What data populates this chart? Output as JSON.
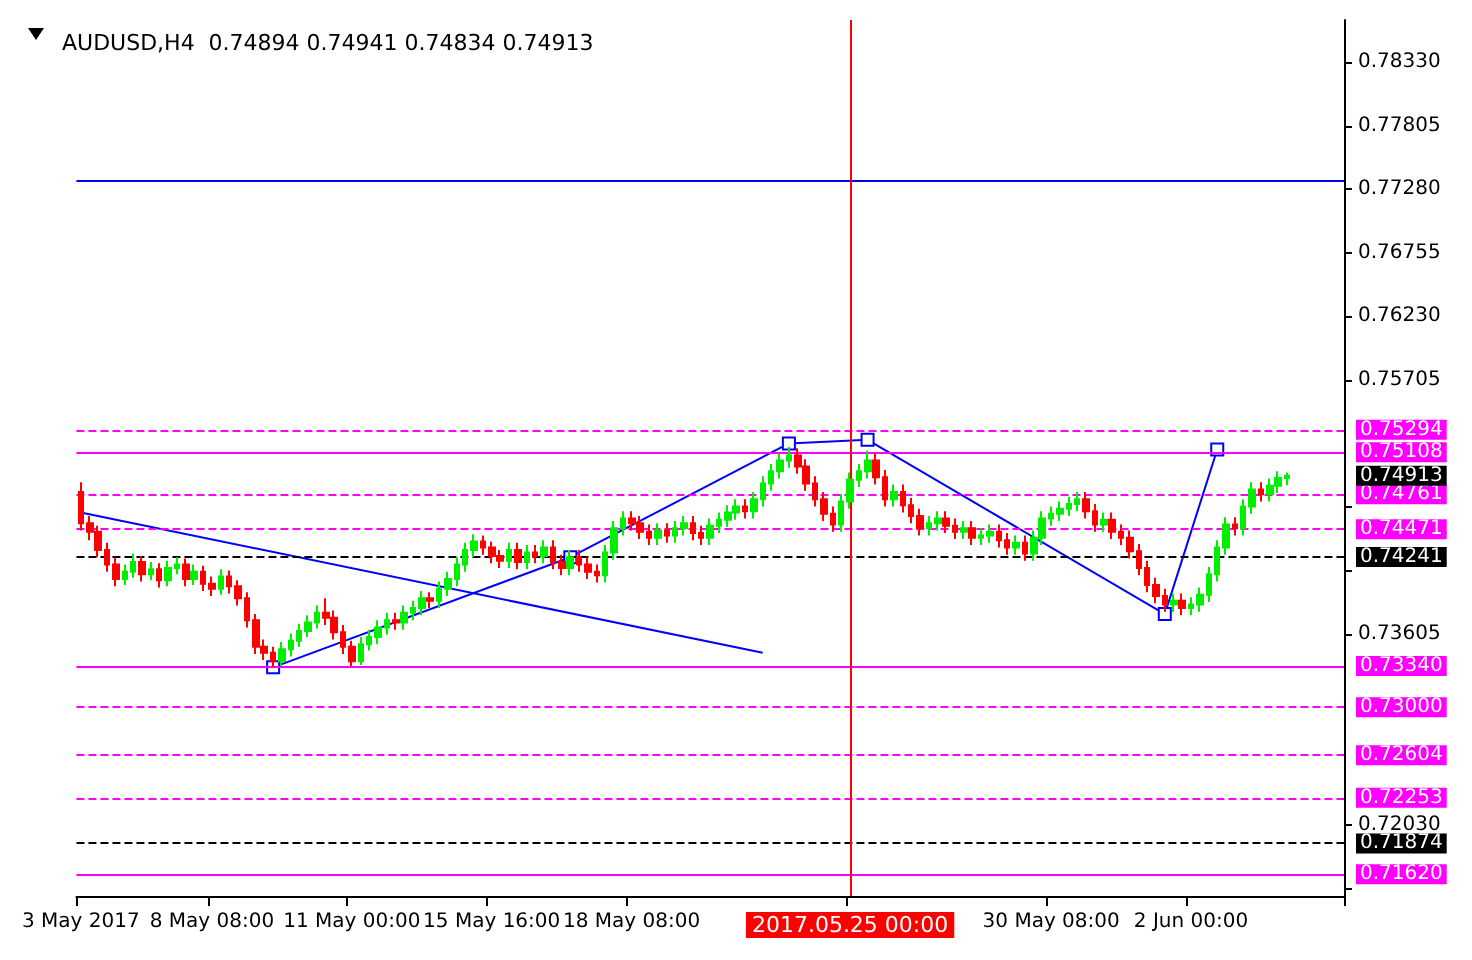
{
  "chart_data": {
    "type": "candlestick",
    "title": "AUDUSD,H4  0.74894 0.74941 0.74834 0.74913",
    "categories": [
      "3 May 2017",
      null,
      null,
      null,
      null,
      null,
      null,
      null,
      null,
      null,
      null,
      null,
      null,
      null,
      null,
      "8 May 08:00",
      null,
      null,
      null,
      null,
      null,
      null,
      null,
      null,
      null,
      null,
      null,
      null,
      null,
      null,
      null,
      "11 May 00:00",
      null,
      null,
      null,
      null,
      null,
      null,
      null,
      null,
      null,
      null,
      null,
      null,
      null,
      null,
      null,
      "15 May 16:00",
      null,
      null,
      null,
      null,
      null,
      null,
      null,
      null,
      null,
      null,
      null,
      null,
      null,
      null,
      null,
      "18 May 08:00",
      null,
      null,
      null,
      null,
      null,
      null,
      null,
      null,
      null,
      null,
      null,
      null,
      null,
      null,
      null,
      null,
      null,
      null,
      null,
      null,
      null,
      null,
      null,
      null,
      "2017.05.25 00:00",
      null,
      null,
      null,
      null,
      null,
      null,
      null,
      null,
      null,
      null,
      null,
      null,
      null,
      null,
      null,
      null,
      null,
      null,
      null,
      null,
      null,
      null,
      "30 May 08:00",
      null,
      null,
      null,
      null,
      null,
      null,
      null,
      null,
      null,
      null,
      null,
      null,
      null,
      null,
      null,
      "2 Jun 00:00",
      null,
      null,
      null,
      null,
      null,
      null,
      null,
      null,
      null,
      null,
      null,
      null,
      null,
      null,
      null,
      null,
      null
    ],
    "ohlc": [
      [
        0.7478,
        0.7486,
        0.7446,
        0.7452
      ],
      [
        0.7452,
        0.7458,
        0.7438,
        0.7445
      ],
      [
        0.7445,
        0.745,
        0.7424,
        0.743
      ],
      [
        0.743,
        0.7436,
        0.7412,
        0.7418
      ],
      [
        0.7418,
        0.7424,
        0.74,
        0.7406
      ],
      [
        0.7406,
        0.7418,
        0.7401,
        0.7412
      ],
      [
        0.7412,
        0.7427,
        0.7407,
        0.742
      ],
      [
        0.742,
        0.7425,
        0.7404,
        0.741
      ],
      [
        0.741,
        0.742,
        0.7405,
        0.7414
      ],
      [
        0.7414,
        0.7419,
        0.7399,
        0.7405
      ],
      [
        0.7405,
        0.7421,
        0.74,
        0.7415
      ],
      [
        0.7415,
        0.7424,
        0.741,
        0.7418
      ],
      [
        0.7418,
        0.7423,
        0.74,
        0.7406
      ],
      [
        0.7406,
        0.7418,
        0.7401,
        0.7412
      ],
      [
        0.7412,
        0.7417,
        0.7396,
        0.7402
      ],
      [
        0.7402,
        0.7408,
        0.7392,
        0.7398
      ],
      [
        0.7398,
        0.7414,
        0.7393,
        0.7408
      ],
      [
        0.7408,
        0.7413,
        0.7394,
        0.74
      ],
      [
        0.74,
        0.7405,
        0.7384,
        0.739
      ],
      [
        0.739,
        0.7395,
        0.7366,
        0.7372
      ],
      [
        0.7372,
        0.7377,
        0.7344,
        0.735
      ],
      [
        0.735,
        0.7356,
        0.7339,
        0.7345
      ],
      [
        0.7345,
        0.735,
        0.7333,
        0.7338
      ],
      [
        0.7338,
        0.7354,
        0.7334,
        0.7348
      ],
      [
        0.7348,
        0.7361,
        0.7342,
        0.7355
      ],
      [
        0.7355,
        0.7369,
        0.735,
        0.7363
      ],
      [
        0.7363,
        0.7376,
        0.7358,
        0.737
      ],
      [
        0.737,
        0.7384,
        0.7365,
        0.7378
      ],
      [
        0.7378,
        0.739,
        0.7368,
        0.7374
      ],
      [
        0.7374,
        0.738,
        0.7356,
        0.7362
      ],
      [
        0.7362,
        0.7368,
        0.7344,
        0.735
      ],
      [
        0.735,
        0.7355,
        0.7334,
        0.7338
      ],
      [
        0.7338,
        0.7358,
        0.7335,
        0.7352
      ],
      [
        0.7352,
        0.7364,
        0.7347,
        0.7358
      ],
      [
        0.7358,
        0.7372,
        0.7352,
        0.7366
      ],
      [
        0.7366,
        0.7378,
        0.736,
        0.7372
      ],
      [
        0.7372,
        0.7378,
        0.7364,
        0.737
      ],
      [
        0.737,
        0.7384,
        0.7364,
        0.7378
      ],
      [
        0.7378,
        0.7388,
        0.7372,
        0.7382
      ],
      [
        0.7382,
        0.7396,
        0.7376,
        0.739
      ],
      [
        0.739,
        0.7395,
        0.7382,
        0.7388
      ],
      [
        0.7388,
        0.7404,
        0.7382,
        0.7398
      ],
      [
        0.7398,
        0.7412,
        0.7392,
        0.7406
      ],
      [
        0.7406,
        0.7424,
        0.74,
        0.7418
      ],
      [
        0.7418,
        0.7436,
        0.7412,
        0.743
      ],
      [
        0.743,
        0.7443,
        0.7424,
        0.7437
      ],
      [
        0.7437,
        0.7442,
        0.7426,
        0.7432
      ],
      [
        0.7432,
        0.7437,
        0.7419,
        0.7425
      ],
      [
        0.7425,
        0.743,
        0.7415,
        0.7421
      ],
      [
        0.7421,
        0.7436,
        0.7415,
        0.743
      ],
      [
        0.743,
        0.7436,
        0.7414,
        0.742
      ],
      [
        0.742,
        0.7434,
        0.7414,
        0.7428
      ],
      [
        0.7428,
        0.7434,
        0.7419,
        0.7425
      ],
      [
        0.7425,
        0.7438,
        0.7419,
        0.7432
      ],
      [
        0.7432,
        0.7438,
        0.7414,
        0.742
      ],
      [
        0.742,
        0.7426,
        0.7409,
        0.7415
      ],
      [
        0.7415,
        0.743,
        0.7409,
        0.7424
      ],
      [
        0.7424,
        0.743,
        0.7412,
        0.7418
      ],
      [
        0.7418,
        0.7424,
        0.7406,
        0.7412
      ],
      [
        0.7412,
        0.7418,
        0.7403,
        0.7409
      ],
      [
        0.7409,
        0.7434,
        0.7403,
        0.7428
      ],
      [
        0.7428,
        0.7454,
        0.7422,
        0.7448
      ],
      [
        0.7448,
        0.7462,
        0.7442,
        0.7456
      ],
      [
        0.7456,
        0.7462,
        0.7446,
        0.7452
      ],
      [
        0.7452,
        0.7458,
        0.7439,
        0.7445
      ],
      [
        0.7445,
        0.7451,
        0.7434,
        0.744
      ],
      [
        0.744,
        0.7452,
        0.7434,
        0.7446
      ],
      [
        0.7446,
        0.7452,
        0.7436,
        0.7442
      ],
      [
        0.7442,
        0.7454,
        0.7436,
        0.7448
      ],
      [
        0.7448,
        0.7458,
        0.7442,
        0.7452
      ],
      [
        0.7452,
        0.7458,
        0.7438,
        0.7444
      ],
      [
        0.7444,
        0.745,
        0.7434,
        0.744
      ],
      [
        0.744,
        0.7456,
        0.7434,
        0.745
      ],
      [
        0.745,
        0.7461,
        0.7444,
        0.7455
      ],
      [
        0.7455,
        0.7467,
        0.7449,
        0.7461
      ],
      [
        0.7461,
        0.7472,
        0.7455,
        0.7466
      ],
      [
        0.7466,
        0.7472,
        0.7456,
        0.7462
      ],
      [
        0.7462,
        0.7478,
        0.7456,
        0.7472
      ],
      [
        0.7472,
        0.7491,
        0.7466,
        0.7485
      ],
      [
        0.7485,
        0.7501,
        0.7479,
        0.7495
      ],
      [
        0.7495,
        0.751,
        0.7489,
        0.7504
      ],
      [
        0.7504,
        0.7515,
        0.7498,
        0.7508
      ],
      [
        0.7508,
        0.7514,
        0.7493,
        0.7499
      ],
      [
        0.7499,
        0.7505,
        0.7479,
        0.7485
      ],
      [
        0.7485,
        0.7491,
        0.7466,
        0.7472
      ],
      [
        0.7472,
        0.7478,
        0.7454,
        0.746
      ],
      [
        0.746,
        0.7466,
        0.7445,
        0.7451
      ],
      [
        0.7451,
        0.7476,
        0.7445,
        0.747
      ],
      [
        0.747,
        0.7494,
        0.7464,
        0.7488
      ],
      [
        0.7488,
        0.7501,
        0.7482,
        0.7495
      ],
      [
        0.7495,
        0.7512,
        0.7489,
        0.7504
      ],
      [
        0.7504,
        0.751,
        0.7484,
        0.749
      ],
      [
        0.749,
        0.7496,
        0.7466,
        0.7472
      ],
      [
        0.7472,
        0.7484,
        0.7466,
        0.7478
      ],
      [
        0.7478,
        0.7484,
        0.7461,
        0.7467
      ],
      [
        0.7467,
        0.7473,
        0.7452,
        0.7458
      ],
      [
        0.7458,
        0.7464,
        0.7442,
        0.7448
      ],
      [
        0.7448,
        0.7458,
        0.7442,
        0.7452
      ],
      [
        0.7452,
        0.7462,
        0.7446,
        0.7456
      ],
      [
        0.7456,
        0.7462,
        0.7444,
        0.745
      ],
      [
        0.745,
        0.7456,
        0.7439,
        0.7445
      ],
      [
        0.7445,
        0.7454,
        0.7439,
        0.7448
      ],
      [
        0.7448,
        0.7454,
        0.7434,
        0.744
      ],
      [
        0.744,
        0.7448,
        0.7434,
        0.7442
      ],
      [
        0.7442,
        0.7451,
        0.7436,
        0.7445
      ],
      [
        0.7445,
        0.7451,
        0.7432,
        0.7438
      ],
      [
        0.7438,
        0.7444,
        0.7426,
        0.7432
      ],
      [
        0.7432,
        0.7442,
        0.7426,
        0.7436
      ],
      [
        0.7436,
        0.7442,
        0.7421,
        0.7427
      ],
      [
        0.7427,
        0.7446,
        0.7421,
        0.744
      ],
      [
        0.744,
        0.7462,
        0.7434,
        0.7456
      ],
      [
        0.7456,
        0.7466,
        0.745,
        0.746
      ],
      [
        0.746,
        0.747,
        0.7454,
        0.7464
      ],
      [
        0.7464,
        0.7474,
        0.7458,
        0.7468
      ],
      [
        0.7468,
        0.7478,
        0.7462,
        0.7472
      ],
      [
        0.7472,
        0.7478,
        0.7456,
        0.7462
      ],
      [
        0.7462,
        0.7468,
        0.7445,
        0.7451
      ],
      [
        0.7451,
        0.7461,
        0.7445,
        0.7455
      ],
      [
        0.7455,
        0.7461,
        0.7439,
        0.7445
      ],
      [
        0.7445,
        0.7451,
        0.7434,
        0.744
      ],
      [
        0.744,
        0.7446,
        0.7423,
        0.7429
      ],
      [
        0.7429,
        0.7435,
        0.7409,
        0.7415
      ],
      [
        0.7415,
        0.7421,
        0.7395,
        0.7401
      ],
      [
        0.7401,
        0.7407,
        0.7386,
        0.7392
      ],
      [
        0.7392,
        0.7398,
        0.7379,
        0.7385
      ],
      [
        0.7385,
        0.7394,
        0.7379,
        0.7388
      ],
      [
        0.7388,
        0.7394,
        0.7376,
        0.7382
      ],
      [
        0.7382,
        0.7391,
        0.7376,
        0.7385
      ],
      [
        0.7385,
        0.7399,
        0.7379,
        0.7393
      ],
      [
        0.7393,
        0.7416,
        0.7387,
        0.741
      ],
      [
        0.741,
        0.7438,
        0.7404,
        0.7432
      ],
      [
        0.7432,
        0.7457,
        0.7426,
        0.7451
      ],
      [
        0.7451,
        0.7457,
        0.7442,
        0.7448
      ],
      [
        0.7448,
        0.7472,
        0.7442,
        0.7466
      ],
      [
        0.7466,
        0.7486,
        0.746,
        0.748
      ],
      [
        0.748,
        0.7486,
        0.747,
        0.7476
      ],
      [
        0.7476,
        0.7489,
        0.747,
        0.7483
      ],
      [
        0.7483,
        0.7495,
        0.7477,
        0.74894
      ],
      [
        0.74894,
        0.74941,
        0.74834,
        0.74913
      ],
      null,
      null,
      null,
      null,
      null,
      null
    ],
    "series": [
      {
        "type": "line",
        "color": "#0000ff",
        "marker": "square",
        "line_style": "solid",
        "values": [
          null,
          null,
          null,
          null,
          null,
          null,
          null,
          null,
          null,
          null,
          null,
          null,
          null,
          null,
          null,
          null,
          null,
          null,
          null,
          null,
          null,
          null,
          0.7333,
          null,
          null,
          null,
          null,
          null,
          null,
          null,
          null,
          null,
          null,
          null,
          null,
          null,
          null,
          null,
          null,
          null,
          null,
          null,
          null,
          null,
          null,
          null,
          null,
          null,
          null,
          null,
          null,
          null,
          null,
          null,
          null,
          null,
          0.7424,
          null,
          null,
          null,
          null,
          null,
          null,
          null,
          null,
          null,
          null,
          null,
          null,
          null,
          null,
          null,
          null,
          null,
          null,
          null,
          null,
          null,
          null,
          null,
          null,
          0.7518,
          null,
          null,
          null,
          null,
          null,
          null,
          null,
          null,
          0.7521,
          null,
          null,
          null,
          null,
          null,
          null,
          null,
          null,
          null,
          null,
          null,
          null,
          null,
          null,
          null,
          null,
          null,
          null,
          null,
          null,
          null,
          null,
          null,
          null,
          null,
          null,
          null,
          null,
          null,
          null,
          null,
          null,
          null,
          0.7377,
          null,
          null,
          null,
          null,
          null,
          0.7513,
          null,
          null,
          null,
          null,
          null,
          null,
          null,
          null,
          null,
          null,
          null,
          null,
          null,
          null
        ]
      },
      {
        "type": "line",
        "color": "#0000ff",
        "marker": "none",
        "line_style": "solid",
        "values": [
          0.7461,
          null,
          null,
          null,
          null,
          null,
          null,
          null,
          null,
          null,
          null,
          null,
          null,
          null,
          null,
          null,
          null,
          null,
          null,
          null,
          null,
          null,
          null,
          null,
          null,
          null,
          null,
          null,
          null,
          null,
          null,
          null,
          null,
          null,
          null,
          null,
          null,
          null,
          null,
          null,
          null,
          null,
          null,
          null,
          null,
          null,
          null,
          null,
          null,
          null,
          null,
          null,
          null,
          null,
          null,
          null,
          null,
          null,
          null,
          null,
          null,
          null,
          null,
          null,
          null,
          null,
          null,
          null,
          null,
          null,
          null,
          null,
          null,
          null,
          null,
          null,
          null,
          null,
          0.7345,
          null,
          null,
          null,
          null,
          null,
          null,
          null,
          null,
          null,
          null,
          null,
          null,
          null,
          null,
          null,
          null,
          null,
          null,
          null,
          null,
          null,
          null,
          null,
          null,
          null,
          null,
          null,
          null,
          null,
          null,
          null,
          null,
          null,
          null,
          null,
          null,
          null,
          null,
          null,
          null,
          null,
          null,
          null,
          null,
          null,
          null,
          null,
          null,
          null,
          null,
          null,
          null,
          null,
          null,
          null,
          null,
          null,
          null,
          null,
          null,
          null,
          null,
          null,
          null,
          null,
          null
        ]
      }
    ],
    "ylim": [
      0.7144,
      0.7868
    ],
    "yticks": [
      {
        "value": 0.7833,
        "label": "0.78330"
      },
      {
        "value": 0.77805,
        "label": "0.77805"
      },
      {
        "value": 0.7728,
        "label": "0.77280"
      },
      {
        "value": 0.76755,
        "label": "0.76755"
      },
      {
        "value": 0.7623,
        "label": "0.76230"
      },
      {
        "value": 0.75705,
        "label": "0.75705"
      },
      {
        "value": 0.74655,
        "label": null
      },
      {
        "value": 0.7413,
        "label": null
      },
      {
        "value": 0.73605,
        "label": "0.73605"
      },
      {
        "value": 0.7203,
        "label": "0.72030"
      },
      {
        "value": 0.71505,
        "label": null
      }
    ],
    "ref_lines": [
      {
        "axis": "y",
        "value": 0.7735,
        "color": "#0000ff",
        "line_style": "solid"
      },
      {
        "axis": "y",
        "value": 0.75294,
        "label": "0.75294",
        "color": "#ff00ff",
        "line_style": "dashed"
      },
      {
        "axis": "y",
        "value": 0.75108,
        "label": "0.75108",
        "color": "#ff00ff",
        "line_style": "solid"
      },
      {
        "axis": "y",
        "value": 0.74761,
        "label": "0.74761",
        "color": "#ff00ff",
        "line_style": "dashed"
      },
      {
        "axis": "y",
        "value": 0.74471,
        "label": "0.74471",
        "color": "#ff00ff",
        "line_style": "dashed"
      },
      {
        "axis": "y",
        "value": 0.74241,
        "label": "0.74241",
        "color": "#000000",
        "line_style": "dashed"
      },
      {
        "axis": "y",
        "value": 0.7334,
        "label": "0.73340",
        "color": "#ff00ff",
        "line_style": "solid"
      },
      {
        "axis": "y",
        "value": 0.73,
        "label": "0.73000",
        "color": "#ff00ff",
        "line_style": "dashed"
      },
      {
        "axis": "y",
        "value": 0.72604,
        "label": "0.72604",
        "color": "#ff00ff",
        "line_style": "dashed"
      },
      {
        "axis": "y",
        "value": 0.72253,
        "label": "0.72253",
        "color": "#ff00ff",
        "line_style": "dashed"
      },
      {
        "axis": "y",
        "value": 0.71874,
        "label": "0.71874",
        "color": "#000000",
        "line_style": "dashed"
      },
      {
        "axis": "y",
        "value": 0.7162,
        "label": "0.71620",
        "color": "#ff00ff",
        "line_style": "solid"
      },
      {
        "axis": "x",
        "value": "2017.05.25 00:00",
        "color": "#ff0000",
        "line_style": "solid"
      }
    ],
    "annotations": [
      "0.74913"
    ],
    "grid": false
  }
}
